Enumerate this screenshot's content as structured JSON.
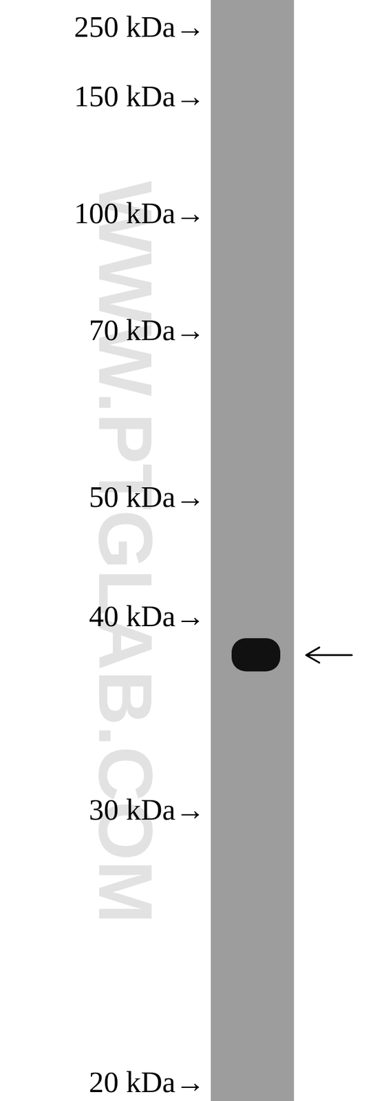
{
  "chart_data": {
    "type": "western_blot",
    "markers": [
      {
        "value": 250,
        "label": "250 kDa→"
      },
      {
        "value": 150,
        "label": "150 kDa→"
      },
      {
        "value": 100,
        "label": "100 kDa→"
      },
      {
        "value": 70,
        "label": "70 kDa→"
      },
      {
        "value": 50,
        "label": "50 kDa→"
      },
      {
        "value": 40,
        "label": "40 kDa→"
      },
      {
        "value": 30,
        "label": "30 kDa→"
      },
      {
        "value": 20,
        "label": "20 kDa→"
      }
    ],
    "bands": [
      {
        "value": 38
      }
    ],
    "color": "#111111",
    "watermark": "WWW.PTGLAB.COM"
  }
}
